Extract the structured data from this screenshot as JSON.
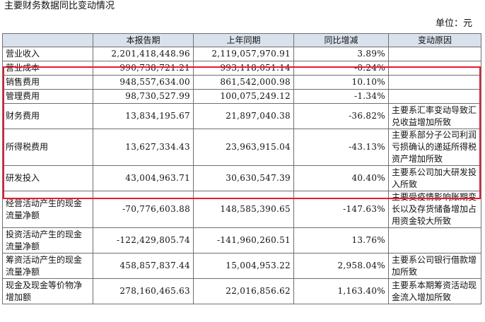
{
  "title": "主要财务数据同比变动情况",
  "unit": "单位：元",
  "table": {
    "headers": [
      "",
      "本报告期",
      "上年同期",
      "同比增减",
      "变动原因"
    ],
    "rows": [
      {
        "item": "营业收入",
        "current": "2,201,418,448.96",
        "prior": "2,119,057,970.91",
        "change": "3.89%",
        "reason": ""
      },
      {
        "item": "营业成本",
        "current": "990,738,721.21",
        "prior": "993,118,051.14",
        "change": "-0.24%",
        "reason": ""
      },
      {
        "item": "销售费用",
        "current": "948,557,634.00",
        "prior": "861,542,000.98",
        "change": "10.10%",
        "reason": ""
      },
      {
        "item": "管理费用",
        "current": "98,730,527.99",
        "prior": "100,075,249.12",
        "change": "-1.34%",
        "reason": ""
      },
      {
        "item": "财务费用",
        "current": "13,834,195.67",
        "prior": "21,897,040.38",
        "change": "-36.82%",
        "reason": "主要系汇率变动导致汇兑收益增加所致"
      },
      {
        "item": "所得税费用",
        "current": "13,627,334.43",
        "prior": "23,963,915.04",
        "change": "-43.13%",
        "reason": "主要系部分子公司利润亏损确认的递延所得税资产增加所致"
      },
      {
        "item": "研发投入",
        "current": "43,004,963.71",
        "prior": "30,630,547.39",
        "change": "40.40%",
        "reason": "主要系公司加大研发投入所致"
      },
      {
        "item": "经营活动产生的现金流量净额",
        "current": "-70,776,603.88",
        "prior": "148,585,390.65",
        "change": "-147.63%",
        "reason": "主要受疫情影响账期变长以及存货储备增加占用资金较大所致"
      },
      {
        "item": "投资活动产生的现金流量净额",
        "current": "-122,429,805.74",
        "prior": "-141,960,260.51",
        "change": "13.76%",
        "reason": ""
      },
      {
        "item": "筹资活动产生的现金流量净额",
        "current": "458,857,837.44",
        "prior": "15,004,953.22",
        "change": "2,958.04%",
        "reason": "主要系公司银行借款增加所致"
      },
      {
        "item": "现金及现金等价物净增加额",
        "current": "278,160,465.63",
        "prior": "22,016,856.62",
        "change": "1,163.40%",
        "reason": "主要系本期筹资活动现金流入增加所致"
      }
    ]
  },
  "highlight_color": "#e8192c"
}
